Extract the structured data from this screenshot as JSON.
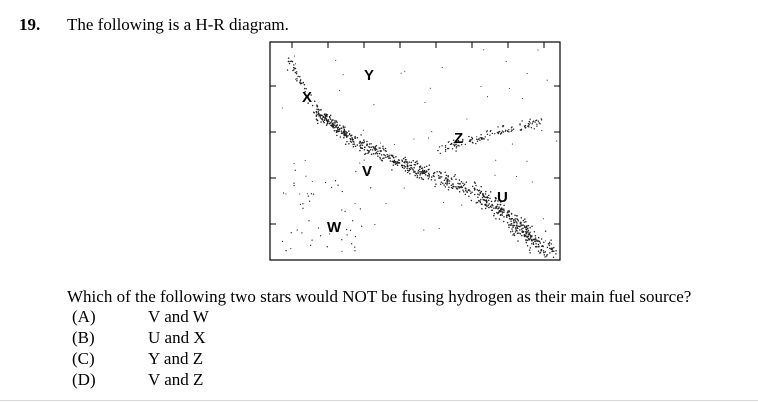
{
  "question": {
    "number": "19.",
    "intro": "The following is a H-R diagram.",
    "prompt": "Which of the following two stars would NOT be fusing hydrogen as their main fuel source?",
    "options": [
      {
        "letter": "(A)",
        "text": "V and W"
      },
      {
        "letter": "(B)",
        "text": "U and X"
      },
      {
        "letter": "(C)",
        "text": "Y and Z"
      },
      {
        "letter": "(D)",
        "text": "V and Z"
      }
    ]
  },
  "diagram": {
    "labels": {
      "x": "X",
      "y": "Y",
      "z": "Z",
      "v": "V",
      "w": "W",
      "u": "U"
    }
  }
}
